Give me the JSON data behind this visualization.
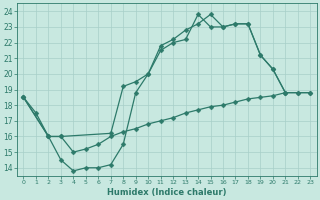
{
  "bg_color": "#c8e8e0",
  "line_color": "#2d7a6a",
  "grid_color": "#a8cfc8",
  "xlim": [
    -0.5,
    23.5
  ],
  "ylim": [
    13.5,
    24.5
  ],
  "xlabel": "Humidex (Indice chaleur)",
  "curve1_x": [
    0,
    1,
    2,
    3,
    4,
    5,
    6,
    7,
    8,
    9,
    10,
    11,
    12,
    13,
    14,
    15,
    16,
    17,
    18,
    19,
    20,
    21
  ],
  "curve1_y": [
    18.5,
    17.5,
    16.0,
    14.5,
    13.8,
    14.0,
    14.0,
    14.2,
    15.5,
    18.8,
    20.0,
    21.5,
    22.0,
    22.2,
    23.8,
    23.0,
    23.0,
    23.2,
    23.2,
    21.2,
    20.3,
    18.8
  ],
  "curve2_x": [
    0,
    2,
    3,
    7,
    8,
    9,
    10,
    11,
    12,
    13,
    14,
    15,
    16,
    17,
    18,
    19,
    20,
    21,
    22,
    23
  ],
  "curve2_y": [
    18.5,
    16.0,
    16.0,
    16.2,
    19.2,
    19.5,
    20.0,
    21.8,
    22.2,
    22.8,
    23.2,
    23.8,
    23.0,
    23.2,
    23.2,
    21.2,
    20.3,
    18.8,
    18.8,
    18.8
  ],
  "curve3_x": [
    0,
    2,
    3,
    4,
    5,
    6,
    7,
    8,
    9,
    10,
    11,
    12,
    13,
    14,
    15,
    16,
    17,
    18,
    19,
    20,
    21,
    22,
    23
  ],
  "curve3_y": [
    18.5,
    16.0,
    16.0,
    15.0,
    15.2,
    15.5,
    16.0,
    16.3,
    16.5,
    16.8,
    17.0,
    17.2,
    17.5,
    17.7,
    17.9,
    18.0,
    18.2,
    18.4,
    18.5,
    18.6,
    18.8,
    18.8,
    18.8
  ]
}
